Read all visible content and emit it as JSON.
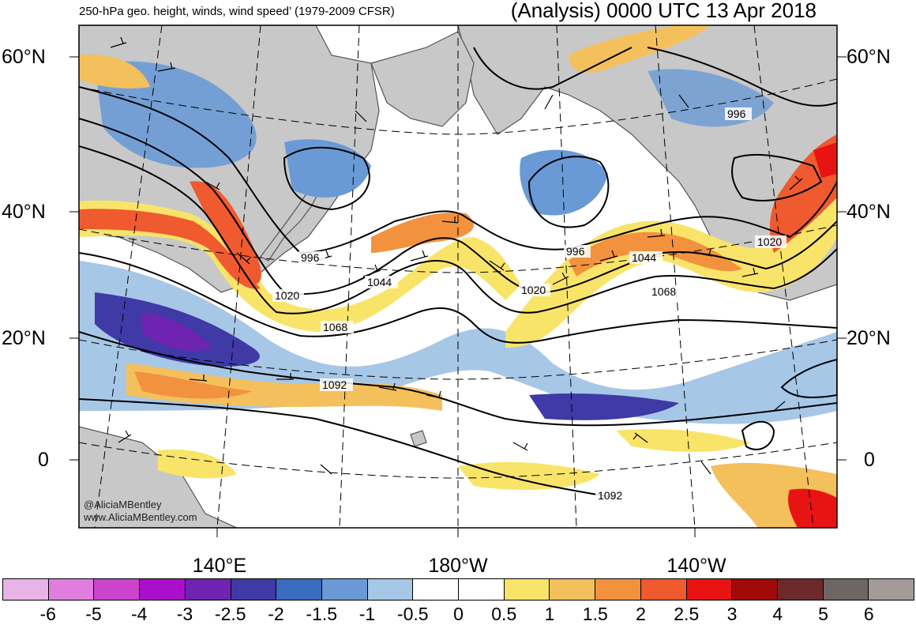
{
  "header": {
    "left": "250-hPa geo. height, winds, wind speed’ (1979-2009 CFSR)",
    "right": "(Analysis) 0000 UTC 13 Apr 2018"
  },
  "lat_labels": [
    "60°N",
    "40°N",
    "20°N",
    "0"
  ],
  "lon_labels": [
    "140°E",
    "180°W",
    "140°W"
  ],
  "contour_labels": [
    "996",
    "1020",
    "1044",
    "1068",
    "1092"
  ],
  "credits": [
    "@AliciaMBentley",
    "www.AliciaMBentley.com"
  ],
  "colorbar": {
    "labels": [
      "-6",
      "-5",
      "-4",
      "-3",
      "-2.5",
      "-2",
      "-1.5",
      "-1",
      "-0.5",
      "0",
      "0.5",
      "1",
      "1.5",
      "2",
      "2.5",
      "3",
      "4",
      "5",
      "6"
    ],
    "colors": [
      "#e8b4e8",
      "#e07ee0",
      "#cc44cc",
      "#aa10cc",
      "#6e24b0",
      "#3f3aa6",
      "#3a6cc0",
      "#6a9ad6",
      "#a7c7e7",
      "#ffffff",
      "#ffffff",
      "#f9e46a",
      "#f4c05c",
      "#f2923e",
      "#ef5a2e",
      "#e81414",
      "#a00a0a",
      "#6e2a2a",
      "#6e6664",
      "#a49a98"
    ]
  },
  "colors": {
    "land": "#c8c8c8",
    "coast": "#555555",
    "contour": "#000000"
  }
}
